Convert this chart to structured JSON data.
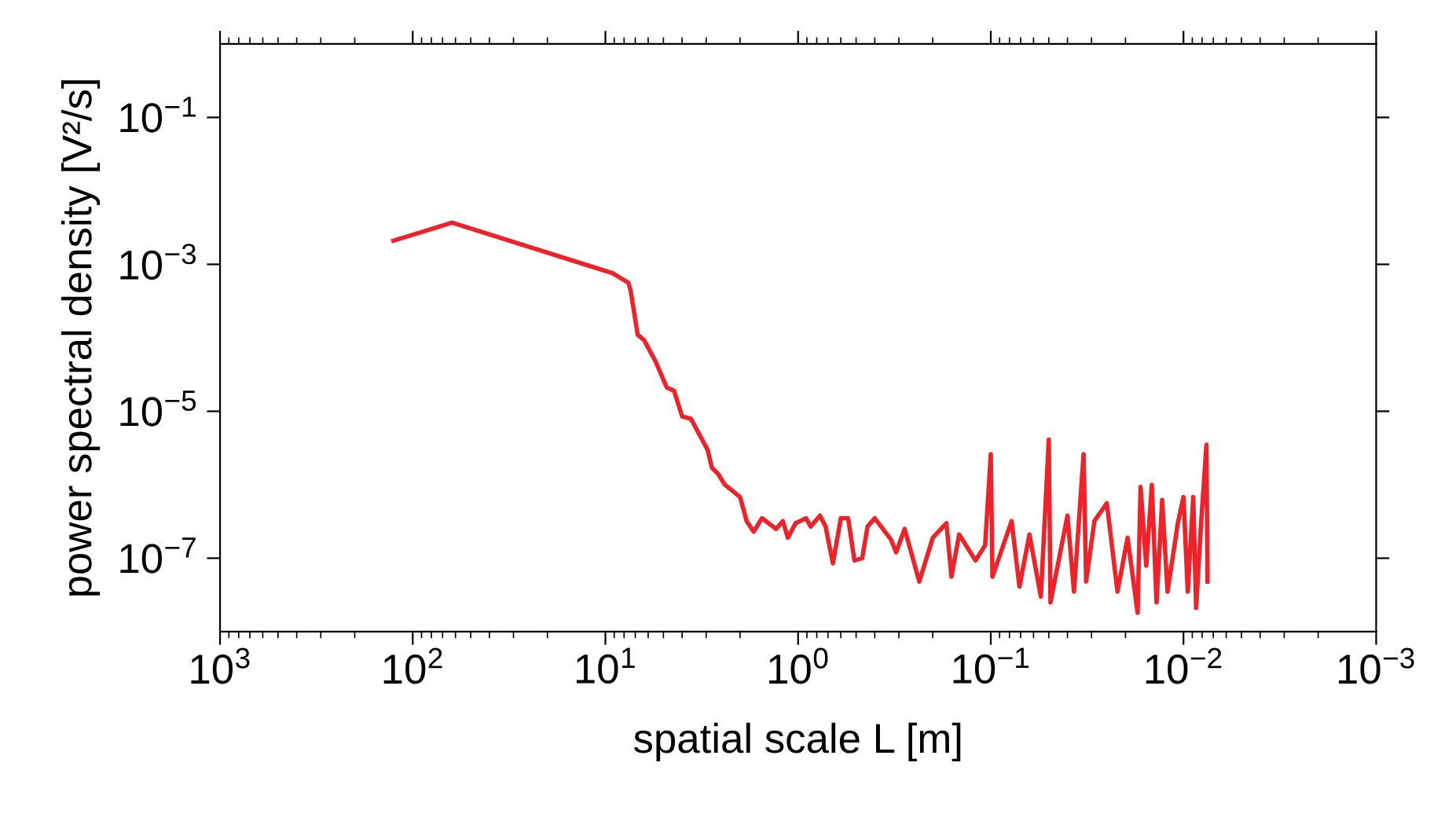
{
  "chart_data": {
    "type": "line",
    "xlabel": "spatial scale L [m]",
    "ylabel": "power spectral density [V²/s]",
    "log": "xy",
    "xlim": [
      1000,
      0.001
    ],
    "ylim": [
      1e-08,
      1
    ],
    "xticks": [
      {
        "value": 1000,
        "label": "10$^{3}$"
      },
      {
        "value": 100,
        "label": "10$^{2}$"
      },
      {
        "value": 10,
        "label": "10$^{1}$"
      },
      {
        "value": 1,
        "label": "10$^{0}$"
      },
      {
        "value": 0.1,
        "label": "10$^{−1}$"
      },
      {
        "value": 0.01,
        "label": "10$^{−2}$"
      },
      {
        "value": 0.001,
        "label": "10$^{−3}$"
      }
    ],
    "yticks": [
      {
        "value": 0.1,
        "label": "10$^{−1}$"
      },
      {
        "value": 0.001,
        "label": "10$^{−3}$"
      },
      {
        "value": 1e-05,
        "label": "10$^{−5}$"
      },
      {
        "value": 1e-07,
        "label": "10$^{−7}$"
      }
    ],
    "x": [
      126,
      62.5,
      9.2,
      7.6,
      7.4,
      6.8,
      6.3,
      5.5,
      4.8,
      4.4,
      4.0,
      3.6,
      2.95,
      2.8,
      2.6,
      2.4,
      2.0,
      1.85,
      1.7,
      1.54,
      1.3,
      1.2,
      1.13,
      1.03,
      0.91,
      0.86,
      0.77,
      0.72,
      0.66,
      0.6,
      0.55,
      0.51,
      0.465,
      0.436,
      0.4,
      0.33,
      0.31,
      0.28,
      0.235,
      0.2,
      0.17,
      0.16,
      0.146,
      0.12,
      0.107,
      0.1,
      0.098,
      0.078,
      0.071,
      0.063,
      0.055,
      0.05,
      0.049,
      0.04,
      0.037,
      0.033,
      0.032,
      0.029,
      0.025,
      0.022,
      0.0195,
      0.0173,
      0.0167,
      0.0156,
      0.0146,
      0.0138,
      0.0129,
      0.0121,
      0.0107,
      0.01,
      0.0095,
      0.0089,
      0.0086,
      0.0081,
      0.0076,
      0.0075
    ],
    "series": [
      {
        "color": "#ee2229",
        "values": [
          0.0021,
          0.0037,
          0.00076,
          0.00056,
          0.00044,
          0.00011,
          9.3e-05,
          4.8e-05,
          2.1e-05,
          1.9e-05,
          8.5e-06,
          7.9e-06,
          3e-06,
          1.7e-06,
          1.4e-06,
          1e-06,
          6.8e-07,
          3.2e-07,
          2.3e-07,
          3.5e-07,
          2.5e-07,
          3.2e-07,
          1.9e-07,
          3e-07,
          3.5e-07,
          2.7e-07,
          3.8e-07,
          2.7e-07,
          8.5e-08,
          3.5e-07,
          3.5e-07,
          9.3e-08,
          1e-07,
          2.7e-07,
          3.5e-07,
          1.8e-07,
          1.2e-07,
          2.5e-07,
          4.8e-08,
          1.9e-07,
          3e-07,
          5.6e-08,
          2.1e-07,
          9.3e-08,
          1.5e-07,
          2.6e-06,
          5.6e-08,
          3.2e-07,
          4.1e-08,
          2.1e-07,
          3e-08,
          4.1e-06,
          2.5e-08,
          3.8e-07,
          3.5e-08,
          2.6e-06,
          4.8e-08,
          3.2e-07,
          5.6e-07,
          3.5e-08,
          1.9e-07,
          1.8e-08,
          9.3e-07,
          7.9e-08,
          1e-06,
          2.5e-08,
          6.2e-07,
          3.5e-08,
          3e-07,
          6.8e-07,
          3.5e-08,
          6.8e-07,
          2.1e-08,
          3e-07,
          3.5e-06,
          4.8e-08
        ]
      }
    ]
  }
}
